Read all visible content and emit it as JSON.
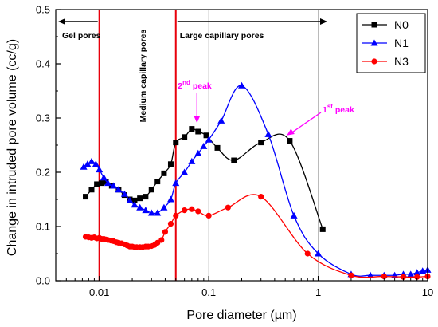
{
  "chart_data": {
    "type": "line",
    "xscale": "log",
    "xlim": [
      0.004,
      10
    ],
    "ylim": [
      0.0,
      0.5
    ],
    "xlabel": "Pore diameter (µm)",
    "ylabel": "Change in intruded pore volume (cc/g)",
    "xticks": [
      {
        "value": 0.01,
        "label": "0.01"
      },
      {
        "value": 0.1,
        "label": "0.1"
      },
      {
        "value": 1,
        "label": "1"
      },
      {
        "value": 10,
        "label": "10"
      }
    ],
    "yticks": [
      {
        "value": 0.0,
        "label": "0.0"
      },
      {
        "value": 0.1,
        "label": "0.1"
      },
      {
        "value": 0.2,
        "label": "0.2"
      },
      {
        "value": 0.3,
        "label": "0.3"
      },
      {
        "value": 0.4,
        "label": "0.4"
      },
      {
        "value": 0.5,
        "label": "0.5"
      }
    ],
    "grid": "vertical",
    "legend": "top-right",
    "vlines": [
      0.01,
      0.05
    ],
    "regions": [
      {
        "label": "Gel pores"
      },
      {
        "label": "Medium capillary pores"
      },
      {
        "label": "Large capillary pores"
      }
    ],
    "annotations": [
      {
        "label": "2",
        "sup": "nd",
        "rest": " peak",
        "x": 0.078,
        "y": 0.285
      },
      {
        "label": "1",
        "sup": "st",
        "rest": " peak",
        "x": 0.5,
        "y": 0.265
      }
    ],
    "series": [
      {
        "name": "N0",
        "color": "#000000",
        "marker": "square",
        "x": [
          0.0075,
          0.0085,
          0.0095,
          0.0105,
          0.0115,
          0.013,
          0.015,
          0.017,
          0.019,
          0.021,
          0.0235,
          0.0265,
          0.03,
          0.034,
          0.039,
          0.045,
          0.05,
          0.06,
          0.07,
          0.08,
          0.095,
          0.12,
          0.17,
          0.3,
          0.55,
          1.1
        ],
        "y": [
          0.155,
          0.168,
          0.178,
          0.18,
          0.182,
          0.175,
          0.168,
          0.158,
          0.15,
          0.148,
          0.152,
          0.155,
          0.168,
          0.183,
          0.198,
          0.215,
          0.255,
          0.265,
          0.28,
          0.275,
          0.268,
          0.245,
          0.222,
          0.255,
          0.258,
          0.095
        ]
      },
      {
        "name": "N1",
        "color": "#0000ff",
        "marker": "triangle",
        "x": [
          0.0072,
          0.0078,
          0.0085,
          0.0093,
          0.01,
          0.011,
          0.012,
          0.0135,
          0.015,
          0.017,
          0.019,
          0.021,
          0.0235,
          0.0265,
          0.03,
          0.034,
          0.039,
          0.045,
          0.05,
          0.06,
          0.07,
          0.08,
          0.09,
          0.1,
          0.13,
          0.2,
          0.35,
          0.6,
          1.0,
          2.0,
          3.0,
          4.0,
          5.0,
          6.0,
          7.0,
          8.0,
          9.0,
          10.0
        ],
        "y": [
          0.21,
          0.215,
          0.22,
          0.215,
          0.205,
          0.19,
          0.18,
          0.175,
          0.168,
          0.16,
          0.148,
          0.14,
          0.135,
          0.13,
          0.125,
          0.125,
          0.135,
          0.15,
          0.18,
          0.2,
          0.22,
          0.235,
          0.248,
          0.26,
          0.295,
          0.36,
          0.27,
          0.12,
          0.05,
          0.012,
          0.01,
          0.01,
          0.01,
          0.012,
          0.012,
          0.015,
          0.018,
          0.02
        ]
      },
      {
        "name": "N3",
        "color": "#ff0000",
        "marker": "circle",
        "x": [
          0.0075,
          0.008,
          0.0085,
          0.009,
          0.0095,
          0.01,
          0.0105,
          0.011,
          0.0115,
          0.012,
          0.0128,
          0.0135,
          0.0143,
          0.015,
          0.016,
          0.017,
          0.018,
          0.019,
          0.02,
          0.021,
          0.022,
          0.0235,
          0.025,
          0.0265,
          0.028,
          0.03,
          0.032,
          0.034,
          0.037,
          0.04,
          0.045,
          0.05,
          0.06,
          0.07,
          0.08,
          0.1,
          0.15,
          0.3,
          0.8,
          2.0,
          4.0,
          6.0,
          8.0,
          10.0
        ],
        "y": [
          0.081,
          0.08,
          0.079,
          0.08,
          0.078,
          0.079,
          0.077,
          0.077,
          0.076,
          0.075,
          0.074,
          0.073,
          0.071,
          0.07,
          0.069,
          0.067,
          0.065,
          0.063,
          0.063,
          0.062,
          0.062,
          0.062,
          0.062,
          0.063,
          0.063,
          0.064,
          0.066,
          0.07,
          0.075,
          0.09,
          0.105,
          0.12,
          0.13,
          0.132,
          0.128,
          0.12,
          0.135,
          0.155,
          0.05,
          0.01,
          0.008,
          0.007,
          0.007,
          0.008
        ]
      }
    ]
  }
}
